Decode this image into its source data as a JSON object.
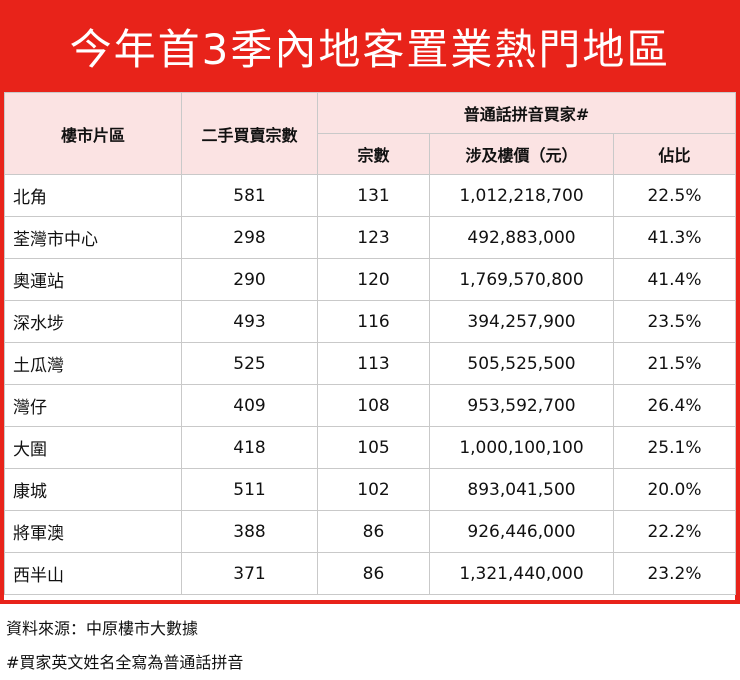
{
  "title": "今年首3季內地客置業熱門地區",
  "headers": {
    "area": "樓市片區",
    "secondhand": "二手買賣宗數",
    "pinyin_group": "普通話拼音買家#",
    "count": "宗數",
    "value": "涉及樓價（元）",
    "share": "佔比"
  },
  "rows": [
    {
      "area": "北角",
      "secondhand": "581",
      "count": "131",
      "value": "1,012,218,700",
      "share": "22.5%"
    },
    {
      "area": "荃灣市中心",
      "secondhand": "298",
      "count": "123",
      "value": "492,883,000",
      "share": "41.3%"
    },
    {
      "area": "奧運站",
      "secondhand": "290",
      "count": "120",
      "value": "1,769,570,800",
      "share": "41.4%"
    },
    {
      "area": "深水埗",
      "secondhand": "493",
      "count": "116",
      "value": "394,257,900",
      "share": "23.5%"
    },
    {
      "area": "土瓜灣",
      "secondhand": "525",
      "count": "113",
      "value": "505,525,500",
      "share": "21.5%"
    },
    {
      "area": "灣仔",
      "secondhand": "409",
      "count": "108",
      "value": "953,592,700",
      "share": "26.4%"
    },
    {
      "area": "大圍",
      "secondhand": "418",
      "count": "105",
      "value": "1,000,100,100",
      "share": "25.1%"
    },
    {
      "area": "康城",
      "secondhand": "511",
      "count": "102",
      "value": "893,041,500",
      "share": "20.0%"
    },
    {
      "area": "將軍澳",
      "secondhand": "388",
      "count": "86",
      "value": "926,446,000",
      "share": "22.2%"
    },
    {
      "area": "西半山",
      "secondhand": "371",
      "count": "86",
      "value": "1,321,440,000",
      "share": "23.2%"
    }
  ],
  "notes": {
    "source": "資料來源：中原樓市大數據",
    "footnote": "#買家英文姓名全寫為普通話拼音"
  }
}
